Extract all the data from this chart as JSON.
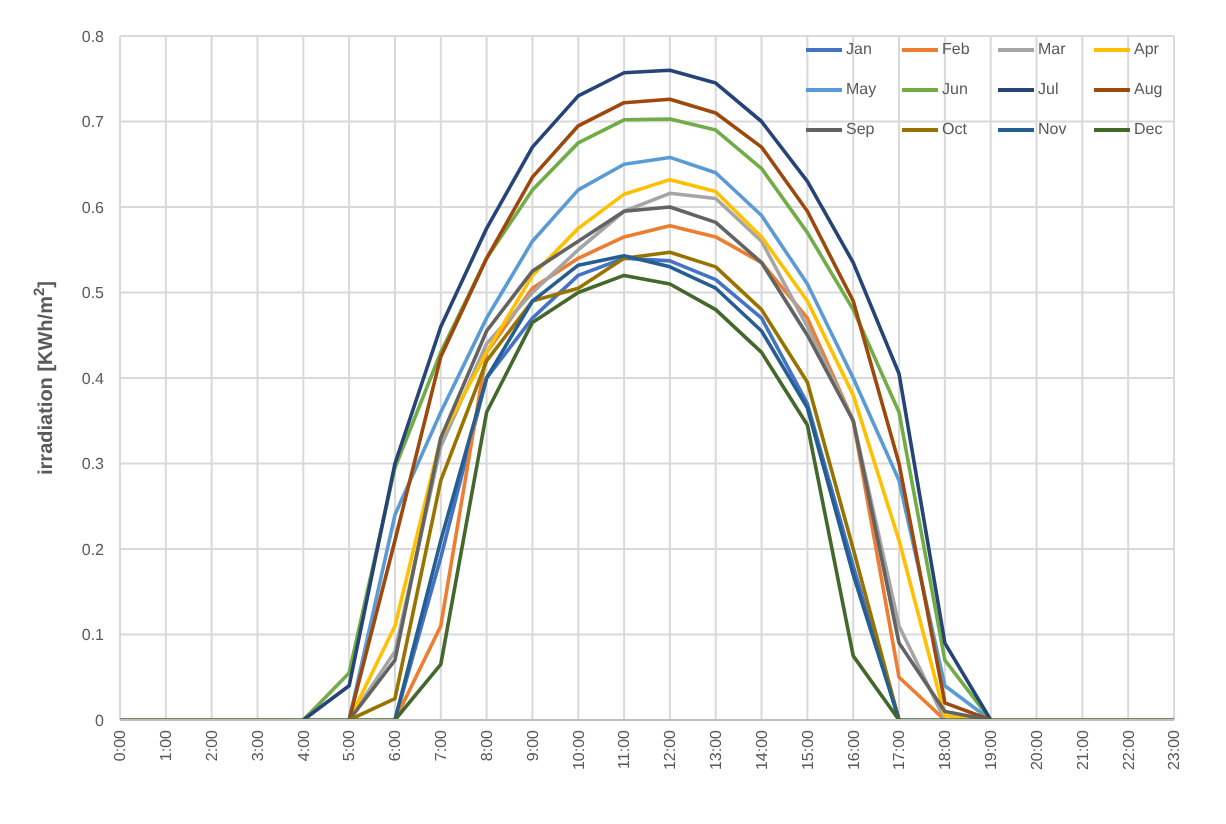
{
  "chart_data": {
    "type": "line",
    "ylabel": "irradiation [KWh/m$^{2}$]",
    "categories": [
      "0:00",
      "1:00",
      "2:00",
      "3:00",
      "4:00",
      "5:00",
      "6:00",
      "7:00",
      "8:00",
      "9:00",
      "10:00",
      "11:00",
      "12:00",
      "13:00",
      "14:00",
      "15:00",
      "16:00",
      "17:00",
      "18:00",
      "19:00",
      "20:00",
      "21:00",
      "22:00",
      "23:00"
    ],
    "ylim": [
      0,
      0.8
    ],
    "yticks": [
      0,
      0.1,
      0.2,
      0.3,
      0.4,
      0.5,
      0.6,
      0.7,
      0.8
    ],
    "grid": true,
    "legend": "top right",
    "marker": "none",
    "line_style": "solid",
    "series": [
      {
        "name": "Jan",
        "color": "#4472c4",
        "values": [
          null,
          null,
          null,
          null,
          null,
          null,
          0,
          0.19,
          0.4,
          0.47,
          0.52,
          0.54,
          0.537,
          0.515,
          0.47,
          0.37,
          0.18,
          0,
          null,
          null,
          null,
          null,
          null,
          null
        ]
      },
      {
        "name": "Feb",
        "color": "#ed7d31",
        "values": [
          null,
          null,
          null,
          null,
          null,
          null,
          0,
          0.11,
          0.43,
          0.505,
          0.54,
          0.565,
          0.578,
          0.565,
          0.535,
          0.47,
          0.35,
          0.05,
          0,
          null,
          null,
          null,
          null,
          null
        ]
      },
      {
        "name": "Mar",
        "color": "#a5a5a5",
        "values": [
          null,
          null,
          null,
          null,
          null,
          0,
          0.08,
          0.32,
          0.44,
          0.5,
          0.55,
          0.595,
          0.616,
          0.61,
          0.56,
          0.46,
          0.35,
          0.11,
          0,
          null,
          null,
          null,
          null,
          null
        ]
      },
      {
        "name": "Apr",
        "color": "#ffc000",
        "values": [
          null,
          null,
          null,
          null,
          null,
          0,
          0.11,
          0.33,
          0.43,
          0.52,
          0.575,
          0.615,
          0.632,
          0.618,
          0.565,
          0.49,
          0.38,
          0.21,
          0.005,
          0,
          null,
          null,
          null,
          null
        ]
      },
      {
        "name": "May",
        "color": "#5b9bd5",
        "values": [
          null,
          null,
          null,
          null,
          null,
          0,
          0.24,
          0.36,
          0.47,
          0.56,
          0.62,
          0.65,
          0.658,
          0.64,
          0.59,
          0.51,
          0.4,
          0.28,
          0.04,
          0,
          null,
          null,
          null,
          null
        ]
      },
      {
        "name": "Jun",
        "color": "#70ad47",
        "values": [
          null,
          null,
          null,
          null,
          0,
          0.055,
          0.295,
          0.43,
          0.54,
          0.62,
          0.675,
          0.702,
          0.703,
          0.69,
          0.645,
          0.57,
          0.48,
          0.36,
          0.07,
          0,
          null,
          null,
          null,
          null
        ]
      },
      {
        "name": "Jul",
        "color": "#264478",
        "values": [
          null,
          null,
          null,
          null,
          0,
          0.04,
          0.3,
          0.46,
          0.575,
          0.67,
          0.73,
          0.757,
          0.76,
          0.745,
          0.7,
          0.63,
          0.535,
          0.405,
          0.09,
          0,
          null,
          null,
          null,
          null
        ]
      },
      {
        "name": "Aug",
        "color": "#9e480e",
        "values": [
          null,
          null,
          null,
          null,
          null,
          0,
          0.21,
          0.425,
          0.54,
          0.635,
          0.695,
          0.722,
          0.726,
          0.71,
          0.67,
          0.595,
          0.49,
          0.3,
          0.02,
          0,
          null,
          null,
          null,
          null
        ]
      },
      {
        "name": "Sep",
        "color": "#636363",
        "values": [
          null,
          null,
          null,
          null,
          null,
          0,
          0.07,
          0.33,
          0.455,
          0.525,
          0.56,
          0.595,
          0.6,
          0.582,
          0.535,
          0.45,
          0.35,
          0.09,
          0.01,
          0,
          null,
          null,
          null,
          null
        ]
      },
      {
        "name": "Oct",
        "color": "#997300",
        "values": [
          null,
          null,
          null,
          null,
          null,
          0,
          0.025,
          0.28,
          0.42,
          0.49,
          0.505,
          0.54,
          0.547,
          0.53,
          0.48,
          0.395,
          0.2,
          0,
          null,
          null,
          null,
          null,
          null,
          null
        ]
      },
      {
        "name": "Nov",
        "color": "#255e91",
        "values": [
          null,
          null,
          null,
          null,
          null,
          null,
          0,
          0.21,
          0.4,
          0.49,
          0.532,
          0.543,
          0.53,
          0.505,
          0.455,
          0.365,
          0.17,
          0,
          null,
          null,
          null,
          null,
          null,
          null
        ]
      },
      {
        "name": "Dec",
        "color": "#43682b",
        "values": [
          0,
          0,
          0,
          0,
          0,
          0,
          0,
          0.065,
          0.36,
          0.465,
          0.5,
          0.52,
          0.51,
          0.48,
          0.43,
          0.345,
          0.075,
          0,
          0,
          0,
          0,
          0,
          0,
          0
        ]
      }
    ]
  }
}
